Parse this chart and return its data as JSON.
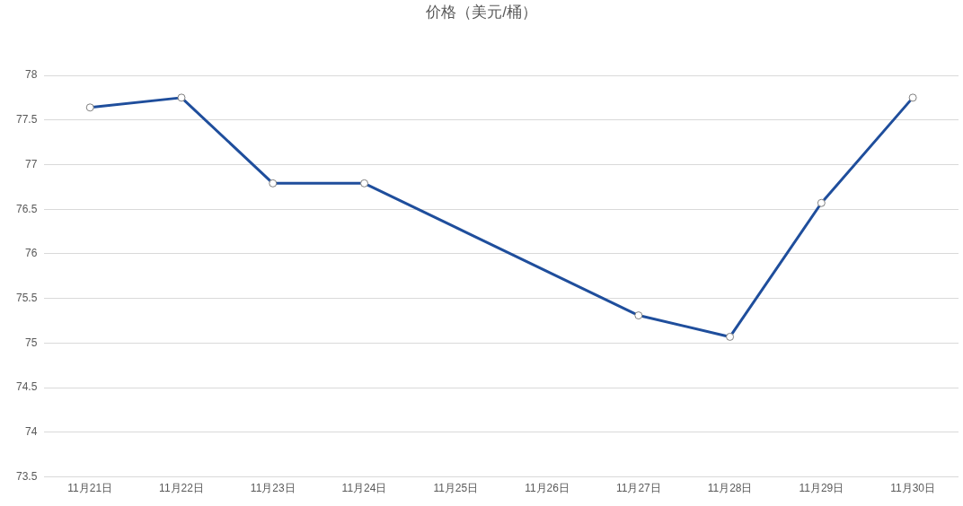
{
  "chart_data": {
    "type": "line",
    "title": "价格（美元/桶）",
    "categories": [
      "11月21日",
      "11月22日",
      "11月23日",
      "11月24日",
      "11月25日",
      "11月26日",
      "11月27日",
      "11月28日",
      "11月29日",
      "11月30日"
    ],
    "series": [
      {
        "color": "#1f4e9c",
        "values": [
          77.64,
          77.75,
          76.79,
          76.79,
          null,
          null,
          75.31,
          75.07,
          76.57,
          77.75
        ]
      }
    ],
    "ylim": [
      73.5,
      78
    ],
    "yticks": [
      73.5,
      74,
      74.5,
      75,
      75.5,
      76,
      76.5,
      77,
      77.5,
      78
    ],
    "grid": "y",
    "legend": false,
    "marker": "circle",
    "line_style": "solid"
  }
}
